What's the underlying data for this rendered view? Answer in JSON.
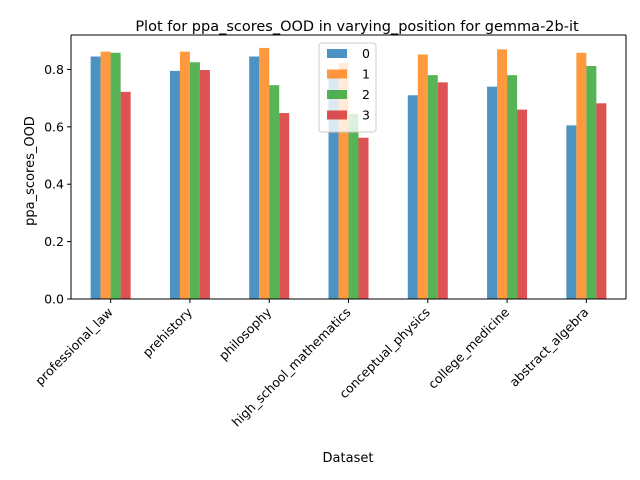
{
  "chart_data": {
    "type": "bar",
    "title": "Plot for ppa_scores_OOD in varying_position for gemma-2b-it",
    "xlabel": "Dataset",
    "ylabel": "ppa_scores_OOD",
    "ylim": [
      0,
      0.92
    ],
    "yticks": [
      0.0,
      0.2,
      0.4,
      0.6,
      0.8
    ],
    "ytick_labels": [
      "0.0",
      "0.2",
      "0.4",
      "0.6",
      "0.8"
    ],
    "grid": false,
    "legend_position": "upper center",
    "categories": [
      "professional_law",
      "prehistory",
      "philosophy",
      "high_school_mathematics",
      "conceptual_physics",
      "college_medicine",
      "abstract_algebra"
    ],
    "series": [
      {
        "name": "0",
        "color": "#1f77b4",
        "values": [
          0.845,
          0.795,
          0.845,
          0.785,
          0.71,
          0.74,
          0.605
        ]
      },
      {
        "name": "1",
        "color": "#ff7f0e",
        "values": [
          0.862,
          0.862,
          0.875,
          0.822,
          0.852,
          0.87,
          0.858
        ]
      },
      {
        "name": "2",
        "color": "#2ca02c",
        "values": [
          0.858,
          0.825,
          0.745,
          0.645,
          0.78,
          0.78,
          0.812
        ]
      },
      {
        "name": "3",
        "color": "#d62728",
        "values": [
          0.722,
          0.798,
          0.648,
          0.562,
          0.755,
          0.66,
          0.682
        ]
      }
    ]
  }
}
